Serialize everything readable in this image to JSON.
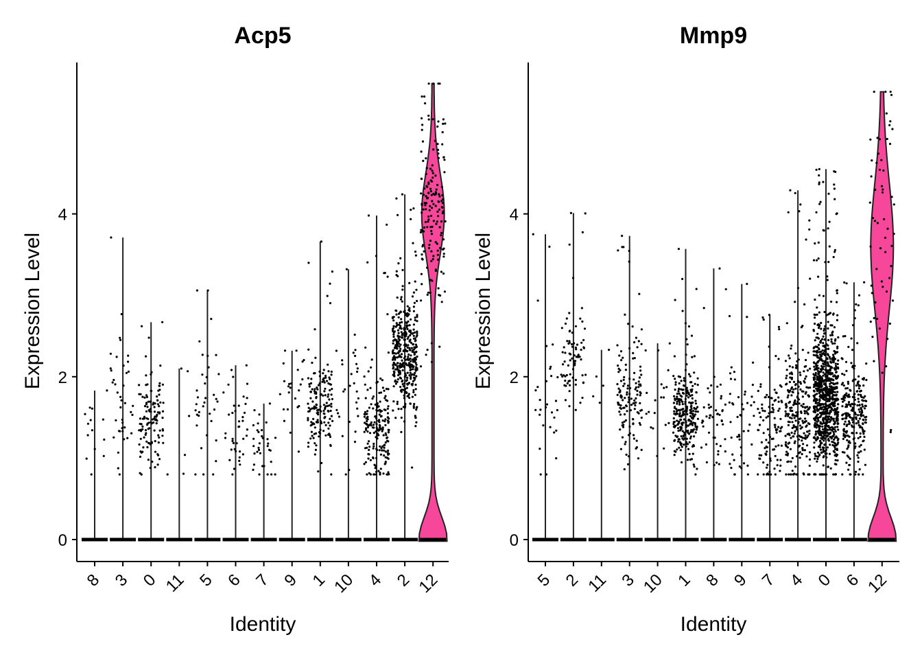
{
  "chart_data": [
    {
      "type": "violin",
      "title": "Acp5",
      "xlabel": "Identity",
      "ylabel": "Expression Level",
      "ylim": [
        -0.27,
        5.86
      ],
      "yticks": [
        0,
        2,
        4
      ],
      "categories": [
        "8",
        "3",
        "0",
        "11",
        "5",
        "6",
        "7",
        "9",
        "1",
        "10",
        "4",
        "2",
        "12"
      ],
      "groups": [
        {
          "name": "8",
          "max": 1.83,
          "center": 1.35,
          "spread": 0.3,
          "n": 14
        },
        {
          "name": "3",
          "max": 3.71,
          "center": 1.6,
          "spread": 0.45,
          "n": 40
        },
        {
          "name": "0",
          "max": 2.67,
          "center": 1.45,
          "spread": 0.3,
          "n": 130
        },
        {
          "name": "11",
          "max": 2.1,
          "center": 1.4,
          "spread": 0.35,
          "n": 6
        },
        {
          "name": "5",
          "max": 3.06,
          "center": 1.6,
          "spread": 0.4,
          "n": 36
        },
        {
          "name": "6",
          "max": 2.14,
          "center": 1.3,
          "spread": 0.3,
          "n": 40
        },
        {
          "name": "7",
          "max": 1.67,
          "center": 1.15,
          "spread": 0.2,
          "n": 34
        },
        {
          "name": "9",
          "max": 2.32,
          "center": 1.6,
          "spread": 0.3,
          "n": 24
        },
        {
          "name": "1",
          "max": 3.66,
          "center": 1.6,
          "spread": 0.3,
          "n": 160
        },
        {
          "name": "10",
          "max": 3.32,
          "center": 1.8,
          "spread": 0.45,
          "n": 30
        },
        {
          "name": "4",
          "max": 3.98,
          "center": 1.35,
          "spread": 0.3,
          "n": 200
        },
        {
          "name": "2",
          "max": 4.24,
          "center": 2.2,
          "spread": 0.35,
          "n": 420
        },
        {
          "name": "12",
          "max": 5.6,
          "center": 4.0,
          "spread": 0.7,
          "n": 170,
          "filled": true
        }
      ]
    },
    {
      "type": "violin",
      "title": "Mmp9",
      "xlabel": "Identity",
      "ylabel": "Expression Level",
      "ylim": [
        -0.27,
        5.86
      ],
      "yticks": [
        0,
        2,
        4
      ],
      "categories": [
        "5",
        "2",
        "11",
        "3",
        "10",
        "1",
        "8",
        "9",
        "7",
        "4",
        "0",
        "6",
        "12"
      ],
      "groups": [
        {
          "name": "5",
          "max": 3.75,
          "center": 1.6,
          "spread": 0.4,
          "n": 30
        },
        {
          "name": "2",
          "max": 4.01,
          "center": 2.2,
          "spread": 0.25,
          "n": 80
        },
        {
          "name": "11",
          "max": 2.33,
          "center": 1.5,
          "spread": 0.4,
          "n": 5
        },
        {
          "name": "3",
          "max": 3.73,
          "center": 1.7,
          "spread": 0.35,
          "n": 140
        },
        {
          "name": "10",
          "max": 2.41,
          "center": 1.6,
          "spread": 0.35,
          "n": 20
        },
        {
          "name": "1",
          "max": 3.57,
          "center": 1.5,
          "spread": 0.3,
          "n": 280
        },
        {
          "name": "8",
          "max": 3.33,
          "center": 1.45,
          "spread": 0.35,
          "n": 50
        },
        {
          "name": "9",
          "max": 3.14,
          "center": 1.5,
          "spread": 0.35,
          "n": 50
        },
        {
          "name": "7",
          "max": 2.76,
          "center": 1.3,
          "spread": 0.35,
          "n": 110
        },
        {
          "name": "4",
          "max": 4.29,
          "center": 1.5,
          "spread": 0.4,
          "n": 260
        },
        {
          "name": "0",
          "max": 4.55,
          "center": 1.7,
          "spread": 0.45,
          "n": 900
        },
        {
          "name": "6",
          "max": 3.16,
          "center": 1.5,
          "spread": 0.35,
          "n": 250
        },
        {
          "name": "12",
          "max": 5.5,
          "center": 3.6,
          "spread": 1.1,
          "n": 60,
          "filled": true
        }
      ]
    }
  ],
  "colors": {
    "violin_fill": "#F7479B",
    "highlight_fill": "#FF4A9E",
    "dot": "#000000"
  }
}
